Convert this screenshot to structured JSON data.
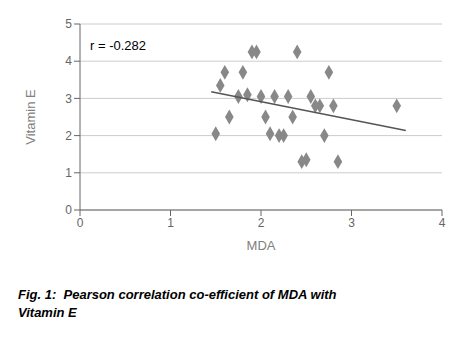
{
  "chart_data": {
    "type": "scatter",
    "xlabel": "MDA",
    "ylabel": "Vitamin E",
    "annotations": [
      "r = -0.282"
    ],
    "caption": [
      "Fig. 1:  Pearson correlation co-efficient of MDA with",
      "Vitamin E"
    ],
    "series": [
      {
        "type": "scatter",
        "marker": "diamond",
        "color": "#888888",
        "x": [
          1.5,
          1.55,
          1.6,
          1.65,
          1.75,
          1.8,
          1.85,
          1.9,
          1.95,
          2.0,
          2.05,
          2.1,
          2.15,
          2.2,
          2.25,
          2.3,
          2.35,
          2.4,
          2.45,
          2.5,
          2.55,
          2.6,
          2.65,
          2.7,
          2.75,
          2.8,
          2.85,
          3.5
        ],
        "values": [
          2.05,
          3.35,
          3.7,
          2.5,
          3.05,
          3.7,
          3.1,
          4.25,
          4.25,
          3.05,
          2.5,
          2.05,
          3.05,
          2.0,
          2.0,
          3.05,
          2.5,
          4.25,
          1.3,
          1.35,
          3.05,
          2.8,
          2.8,
          2.0,
          3.7,
          2.8,
          1.3,
          2.8
        ]
      },
      {
        "type": "line",
        "line_style": "solid",
        "color": "#555555",
        "x": [
          1.45,
          3.6
        ],
        "values": [
          3.178,
          2.138
        ]
      }
    ],
    "xlim": [
      0,
      4
    ],
    "ylim": [
      0,
      5
    ],
    "xticks": [
      0,
      1,
      2,
      3,
      4
    ],
    "yticks": [
      0,
      1,
      2,
      3,
      4,
      5
    ],
    "grid": "y"
  }
}
